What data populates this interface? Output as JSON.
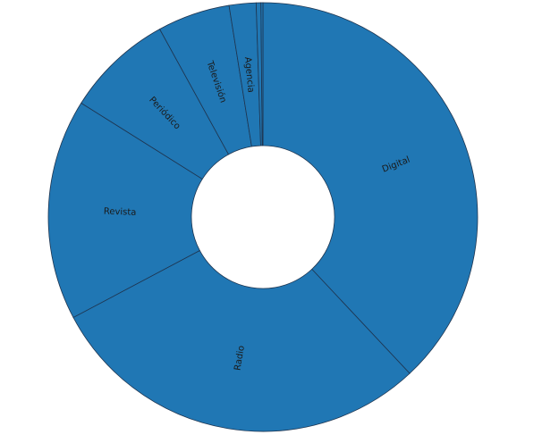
{
  "chart_data": {
    "type": "pie",
    "variant": "donut",
    "title": "",
    "color": "#2077b4",
    "edge_color": "#1f3550",
    "background": "#ffffff",
    "start_angle_deg": 90,
    "direction": "clockwise",
    "slices": [
      {
        "label": "Digital",
        "value": 37.6
      },
      {
        "label": "Radio",
        "value": 28.9
      },
      {
        "label": "Revista",
        "value": 16.5
      },
      {
        "label": "Periódico",
        "value": 8.0
      },
      {
        "label": "Televisión",
        "value": 5.4
      },
      {
        "label": "Agencia",
        "value": 2.0
      },
      {
        "label": "",
        "value": 0.35
      },
      {
        "label": "",
        "value": 0.15
      }
    ]
  }
}
